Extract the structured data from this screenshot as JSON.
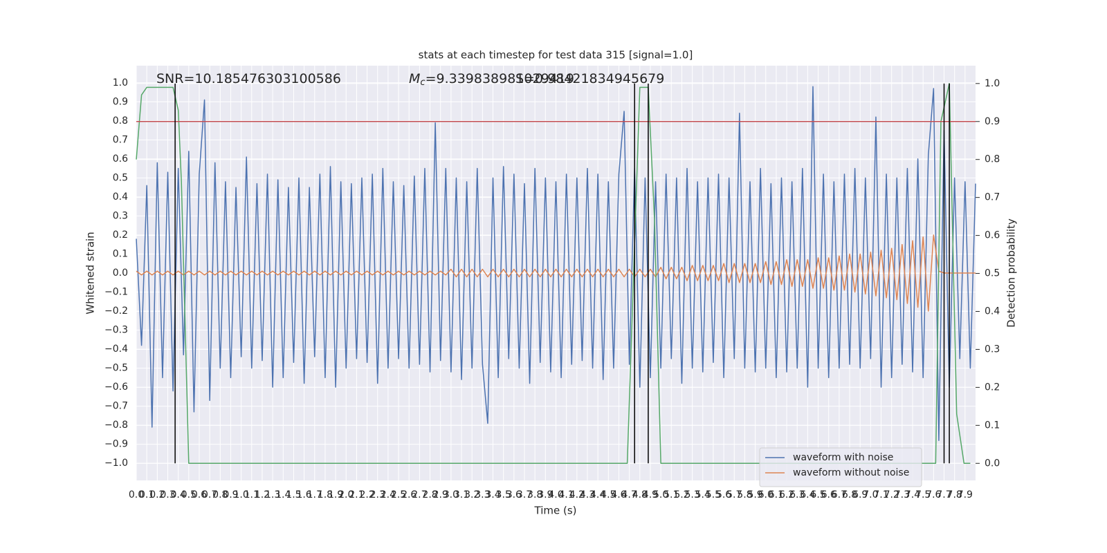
{
  "chart_data": {
    "type": "line",
    "title": "stats at each timestep for test data 315 [signal=1.0]",
    "xlabel": "Time (s)",
    "ylabel": "Whitened strain",
    "y2label": "Detection probability",
    "annotations": [
      {
        "text": "SNR=10.185476303100586"
      },
      {
        "symbol": "M",
        "sub": "c",
        "text": "=9.339838981029419"
      },
      {
        "text": "S=0.98421834945679"
      }
    ],
    "background": "#eaeaf2",
    "grid": true,
    "legend": "lower right",
    "xlim": [
      0,
      8.0
    ],
    "ylim": [
      -1.09,
      1.09
    ],
    "y2lim": [
      -0.045,
      1.047
    ],
    "xticks": [
      {
        "value": 0,
        "label": "0.0"
      },
      0.1,
      0.2,
      0.3,
      0.4,
      0.5,
      0.6,
      0.7,
      0.8,
      0.9,
      {
        "value": 1,
        "label": "1.0"
      },
      1.1,
      1.2,
      1.3,
      1.4,
      1.5,
      1.6,
      1.7,
      1.8,
      1.9,
      {
        "value": 2,
        "label": "2.0"
      },
      2.1,
      2.2,
      2.3,
      2.4,
      2.5,
      2.6,
      2.7,
      2.8,
      2.9,
      {
        "value": 3,
        "label": "3.0"
      },
      3.1,
      3.2,
      3.3,
      3.4,
      3.5,
      3.6,
      3.7,
      3.8,
      3.9,
      {
        "value": 4,
        "label": "4.0"
      },
      4.1,
      4.2,
      4.3,
      4.4,
      4.5,
      4.6,
      4.7,
      4.8,
      4.9,
      {
        "value": 5,
        "label": "5.0"
      },
      5.1,
      5.2,
      5.3,
      5.4,
      5.5,
      5.6,
      5.7,
      5.8,
      5.9,
      {
        "value": 6,
        "label": "6.0"
      },
      6.1,
      6.2,
      6.3,
      6.4,
      6.5,
      6.6,
      6.7,
      6.8,
      6.9,
      {
        "value": 7,
        "label": "7.0"
      },
      7.1,
      7.2,
      7.3,
      7.4,
      7.5,
      7.6,
      7.7,
      7.8,
      7.9
    ],
    "yticks": [
      {
        "value": -1,
        "label": "−1.0"
      },
      {
        "value": -0.9,
        "label": "−0.9"
      },
      {
        "value": -0.8,
        "label": "−0.8"
      },
      {
        "value": -0.7,
        "label": "−0.7"
      },
      {
        "value": -0.6,
        "label": "−0.6"
      },
      {
        "value": -0.5,
        "label": "−0.5"
      },
      {
        "value": -0.4,
        "label": "−0.4"
      },
      {
        "value": -0.3,
        "label": "−0.3"
      },
      {
        "value": -0.2,
        "label": "−0.2"
      },
      {
        "value": -0.1,
        "label": "−0.1"
      },
      {
        "value": 0,
        "label": "0.0"
      },
      0.1,
      0.2,
      0.3,
      0.4,
      0.5,
      0.6,
      0.7,
      0.8,
      0.9,
      {
        "value": 1,
        "label": "1.0"
      }
    ],
    "y2ticks": [
      {
        "value": 0,
        "label": "0.0"
      },
      0.1,
      0.2,
      0.3,
      0.4,
      0.5,
      0.6,
      0.7,
      0.8,
      0.9,
      {
        "value": 1,
        "label": "1.0"
      }
    ],
    "x": [
      0,
      0.05,
      0.1,
      0.15,
      0.2,
      0.25,
      0.3,
      0.35,
      0.4,
      0.45,
      0.5,
      0.55,
      0.6,
      0.65,
      0.7,
      0.75,
      0.8,
      0.85,
      0.9,
      0.95,
      1,
      1.05,
      1.1,
      1.15,
      1.2,
      1.25,
      1.3,
      1.35,
      1.4,
      1.45,
      1.5,
      1.55,
      1.6,
      1.65,
      1.7,
      1.75,
      1.8,
      1.85,
      1.9,
      1.95,
      2,
      2.05,
      2.1,
      2.15,
      2.2,
      2.25,
      2.3,
      2.35,
      2.4,
      2.45,
      2.5,
      2.55,
      2.6,
      2.65,
      2.7,
      2.75,
      2.8,
      2.85,
      2.9,
      2.95,
      3,
      3.05,
      3.1,
      3.15,
      3.2,
      3.25,
      3.3,
      3.35,
      3.4,
      3.45,
      3.5,
      3.55,
      3.6,
      3.65,
      3.7,
      3.75,
      3.8,
      3.85,
      3.9,
      3.95,
      4,
      4.05,
      4.1,
      4.15,
      4.2,
      4.25,
      4.3,
      4.35,
      4.4,
      4.45,
      4.5,
      4.55,
      4.6,
      4.65,
      4.7,
      4.75,
      4.8,
      4.85,
      4.9,
      4.95,
      5,
      5.05,
      5.1,
      5.15,
      5.2,
      5.25,
      5.3,
      5.35,
      5.4,
      5.45,
      5.5,
      5.55,
      5.6,
      5.65,
      5.7,
      5.75,
      5.8,
      5.85,
      5.9,
      5.95,
      6,
      6.05,
      6.1,
      6.15,
      6.2,
      6.25,
      6.3,
      6.35,
      6.4,
      6.45,
      6.5,
      6.55,
      6.6,
      6.65,
      6.7,
      6.75,
      6.8,
      6.85,
      6.9,
      6.95,
      7,
      7.05,
      7.1,
      7.15,
      7.2,
      7.25,
      7.3,
      7.35,
      7.4,
      7.45,
      7.5,
      7.55,
      7.6,
      7.65,
      7.7,
      7.75,
      7.8,
      7.85,
      7.9,
      7.95,
      8
    ],
    "series": [
      {
        "name": "waveform with noise",
        "color": "#4c72b0",
        "values": [
          0.18,
          -0.38,
          0.46,
          -0.81,
          0.58,
          -0.55,
          0.53,
          -0.62,
          0.55,
          -0.43,
          0.64,
          -0.73,
          0.52,
          0.91,
          -0.67,
          0.58,
          -0.5,
          0.48,
          -0.55,
          0.45,
          -0.44,
          0.61,
          -0.5,
          0.47,
          -0.46,
          0.52,
          -0.6,
          0.49,
          -0.55,
          0.45,
          -0.47,
          0.5,
          -0.58,
          0.45,
          -0.44,
          0.52,
          -0.55,
          0.56,
          -0.6,
          0.48,
          -0.5,
          0.47,
          -0.45,
          0.5,
          -0.47,
          0.52,
          -0.58,
          0.55,
          -0.5,
          0.48,
          -0.45,
          0.46,
          -0.5,
          0.51,
          -0.48,
          0.55,
          -0.52,
          0.79,
          -0.46,
          0.55,
          -0.52,
          0.5,
          -0.56,
          0.48,
          -0.5,
          0.55,
          -0.48,
          -0.79,
          0.5,
          -0.55,
          0.56,
          -0.45,
          0.52,
          -0.5,
          0.47,
          -0.58,
          0.55,
          -0.47,
          0.5,
          -0.52,
          0.48,
          -0.55,
          0.52,
          -0.48,
          0.5,
          -0.46,
          0.55,
          -0.5,
          0.52,
          -0.56,
          0.48,
          -0.5,
          0.52,
          0.85,
          -0.48,
          0.55,
          -0.6,
          0.5,
          -0.55,
          0.48,
          -0.5,
          0.52,
          -0.45,
          0.5,
          -0.58,
          0.55,
          -0.5,
          0.48,
          -0.52,
          0.5,
          -0.47,
          0.52,
          -0.55,
          0.5,
          -0.45,
          0.84,
          -0.5,
          0.48,
          -0.52,
          0.55,
          -0.5,
          0.47,
          -0.55,
          0.5,
          -0.52,
          0.48,
          -0.5,
          0.55,
          -0.6,
          0.98,
          -0.5,
          0.52,
          -0.55,
          0.48,
          -0.5,
          0.52,
          -0.48,
          0.55,
          -0.5,
          0.5,
          -0.45,
          0.82,
          -0.6,
          0.52,
          -0.55,
          0.5,
          -0.48,
          0.55,
          -0.52,
          0.6,
          -0.55,
          0.62,
          0.97,
          -0.88,
          0.75,
          -0.6,
          0.5,
          -0.45,
          0.48,
          -0.5,
          0.47
        ]
      },
      {
        "name": "waveform without noise",
        "color": "#dd8452",
        "values": [
          0.01,
          -0.01,
          0.01,
          -0.01,
          0.01,
          -0.01,
          0.01,
          -0.01,
          0.01,
          -0.01,
          0.01,
          -0.01,
          0.01,
          -0.01,
          0.01,
          -0.01,
          0.01,
          -0.01,
          0.01,
          -0.01,
          0.01,
          -0.01,
          0.01,
          -0.01,
          0.01,
          -0.01,
          0.01,
          -0.01,
          0.01,
          -0.01,
          0.01,
          -0.01,
          0.01,
          -0.01,
          0.01,
          -0.01,
          0.01,
          -0.01,
          0.01,
          -0.01,
          0.01,
          -0.01,
          0.01,
          -0.01,
          0.01,
          -0.01,
          0.01,
          -0.01,
          0.01,
          -0.01,
          0.01,
          -0.01,
          0.01,
          -0.01,
          0.01,
          -0.01,
          0.01,
          -0.01,
          0.01,
          -0.01,
          0.02,
          -0.02,
          0.02,
          -0.02,
          0.02,
          -0.02,
          0.02,
          -0.02,
          0.02,
          -0.02,
          0.02,
          -0.02,
          0.02,
          -0.02,
          0.02,
          -0.02,
          0.02,
          -0.02,
          0.02,
          -0.02,
          0.02,
          -0.02,
          0.02,
          -0.02,
          0.02,
          -0.02,
          0.02,
          -0.02,
          0.02,
          -0.02,
          0.02,
          -0.02,
          0.02,
          -0.02,
          0.02,
          -0.02,
          0.02,
          -0.02,
          0.02,
          -0.02,
          0.03,
          -0.03,
          0.03,
          -0.03,
          0.03,
          -0.04,
          0.04,
          -0.04,
          0.04,
          -0.04,
          0.04,
          -0.04,
          0.05,
          -0.05,
          0.05,
          -0.05,
          0.05,
          -0.05,
          0.05,
          -0.05,
          0.06,
          -0.06,
          0.06,
          -0.06,
          0.07,
          -0.07,
          0.07,
          -0.07,
          0.07,
          -0.08,
          0.08,
          -0.08,
          0.08,
          -0.09,
          0.09,
          -0.09,
          0.1,
          -0.1,
          0.1,
          -0.11,
          0.11,
          -0.12,
          0.12,
          -0.13,
          0.13,
          -0.14,
          0.15,
          -0.16,
          0.17,
          -0.18,
          0.19,
          -0.2,
          0.2,
          0.01,
          0,
          0,
          0,
          0,
          0,
          0,
          0
        ]
      },
      {
        "color": "#55a868",
        "axis": "y2",
        "x": [
          0,
          0.05,
          0.1,
          0.15,
          0.2,
          0.25,
          0.3,
          0.35,
          0.4,
          0.43,
          0.5,
          4.68,
          4.8,
          4.88,
          4.94,
          5.0,
          7.62,
          7.67,
          7.75,
          7.82,
          7.89,
          7.95
        ],
        "values": [
          0.8,
          0.97,
          0.99,
          0.99,
          0.99,
          0.99,
          0.99,
          0.99,
          0.93,
          0.74,
          0.0,
          0.0,
          0.99,
          0.99,
          0.64,
          0.0,
          0.0,
          0.9,
          1.0,
          0.13,
          0.0,
          0.0
        ]
      }
    ],
    "hlines": [
      {
        "value": 0.9,
        "axis": "y2",
        "color": "#c44e52"
      }
    ],
    "vlines": {
      "color": "#000000",
      "values": [
        0.37,
        4.75,
        4.88,
        7.7,
        7.75
      ]
    }
  }
}
